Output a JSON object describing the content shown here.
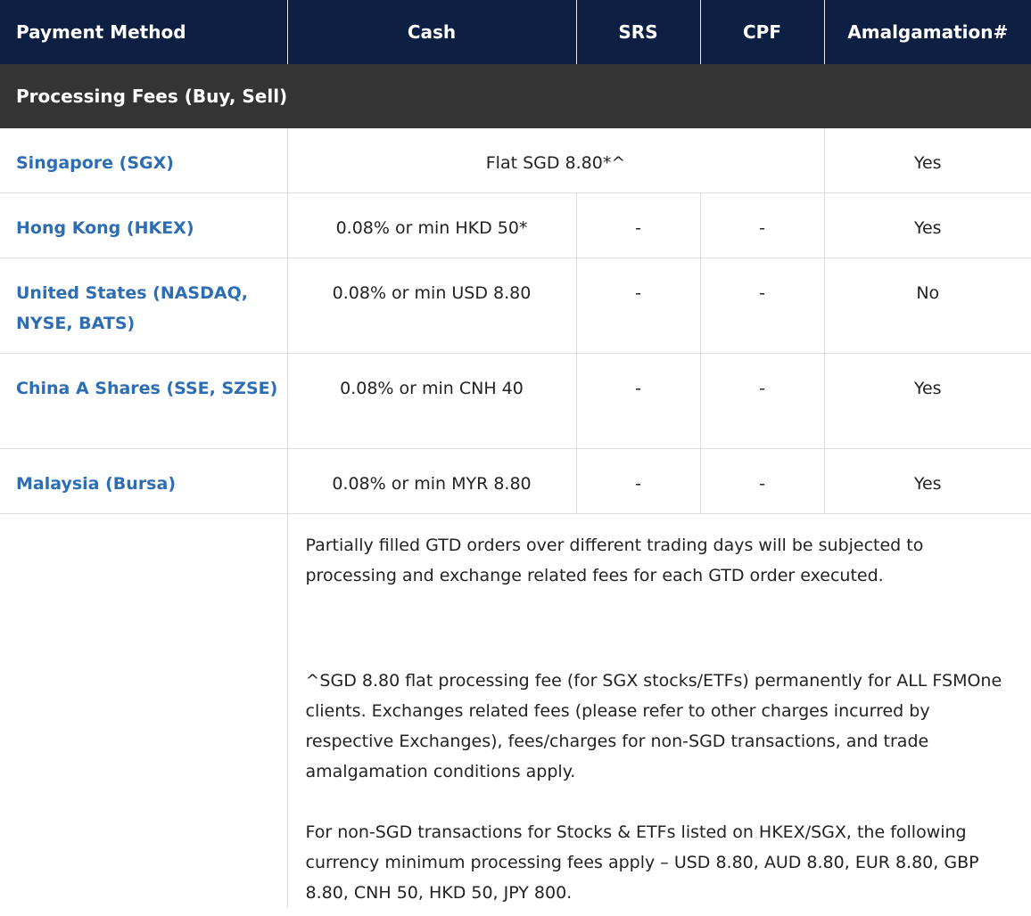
{
  "header": {
    "payment_method": "Payment Method",
    "cash": "Cash",
    "srs": "SRS",
    "cpf": "CPF",
    "amalgamation": "Amalgamation#"
  },
  "section": {
    "title": "Processing Fees (Buy, Sell)"
  },
  "rows": [
    {
      "market": "Singapore (SGX)",
      "combined_fee": "Flat SGD 8.80*^",
      "amalgamation": "Yes"
    },
    {
      "market": "Hong Kong (HKEX)",
      "cash": "0.08% or min HKD 50*",
      "srs": "-",
      "cpf": "-",
      "amalgamation": "Yes"
    },
    {
      "market": "United States (NASDAQ, NYSE, BATS)",
      "cash": "0.08% or min USD 8.80",
      "srs": "-",
      "cpf": "-",
      "amalgamation": "No"
    },
    {
      "market": "China A Shares (SSE, SZSE)",
      "cash": "0.08% or min CNH 40",
      "srs": "-",
      "cpf": "-",
      "amalgamation": "Yes"
    },
    {
      "market": "Malaysia (Bursa)",
      "cash": "0.08% or min MYR 8.80",
      "srs": "-",
      "cpf": "-",
      "amalgamation": "Yes"
    }
  ],
  "notes": [
    "Partially filled GTD orders over different trading days will be subjected to processing and exchange related fees for each GTD order executed.",
    "^SGD 8.80 flat processing fee (for SGX stocks/ETFs) permanently for ALL FSMOne clients. Exchanges related fees (please refer to other charges incurred by respective Exchanges), fees/charges for non-SGD transactions, and trade amalgamation conditions apply.",
    "For non-SGD transactions for Stocks & ETFs listed on HKEX/SGX, the following currency minimum processing fees apply – USD 8.80, AUD 8.80, EUR 8.80, GBP 8.80, CNH 50, HKD 50, JPY 800."
  ]
}
